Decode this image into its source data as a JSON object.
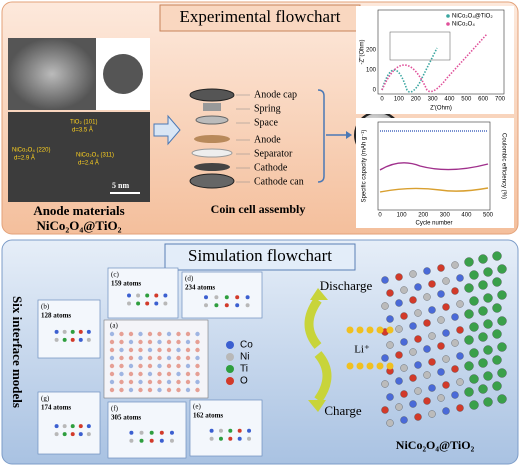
{
  "experimental": {
    "title": "Experimental flowchart",
    "tem_labels": [
      "TiO₂ (101)",
      "d=3.5 Å",
      "NiCo₂O₄ (220)",
      "d=2.9 Å",
      "NiCo₂O₄ (311)",
      "d=2.4 Å",
      "5 nm"
    ],
    "anode_label": [
      "Anode materials",
      "NiCo₂O₄@TiO₂"
    ],
    "coin_parts": [
      "Anode cap",
      "Spring",
      "Space",
      "Anode",
      "Separator",
      "Cathode",
      "Cathode can"
    ],
    "coin_caption": "Coin cell assembly",
    "eis": {
      "y_label": "-Z''(Ohm)",
      "x_label": "Z'(Ohm)",
      "legend": [
        "NiCo₂O₄@TiO₂",
        "NiCo₂O₄"
      ],
      "xticks": [
        0,
        100,
        200,
        300,
        400,
        500,
        600,
        700
      ],
      "yticks": [
        0,
        100,
        200
      ]
    },
    "cycling": {
      "y_label": "Specific capacity (mAh g⁻¹)",
      "y2_label": "Coulombic efficiency (%)",
      "x_label": "Cycle number",
      "xticks": [
        0,
        100,
        200,
        300,
        400,
        500
      ]
    }
  },
  "simulation": {
    "title": "Simulation flowchart",
    "side_label": "Six interface models",
    "center_label": "(a)",
    "panels": [
      {
        "label": "(b)",
        "atoms": "128 atoms"
      },
      {
        "label": "(c)",
        "atoms": "159 atoms"
      },
      {
        "label": "(d)",
        "atoms": "234 atoms"
      },
      {
        "label": "(g)",
        "atoms": "174 atoms"
      },
      {
        "label": "(f)",
        "atoms": "305 atoms"
      },
      {
        "label": "(e)",
        "atoms": "162 atoms"
      }
    ],
    "elements": [
      "Co",
      "Ni",
      "Ti",
      "O"
    ],
    "discharge": "Discharge",
    "charge": "Charge",
    "ion": "Li⁺",
    "product": "NiCo₂O₄@TiO₂"
  }
}
